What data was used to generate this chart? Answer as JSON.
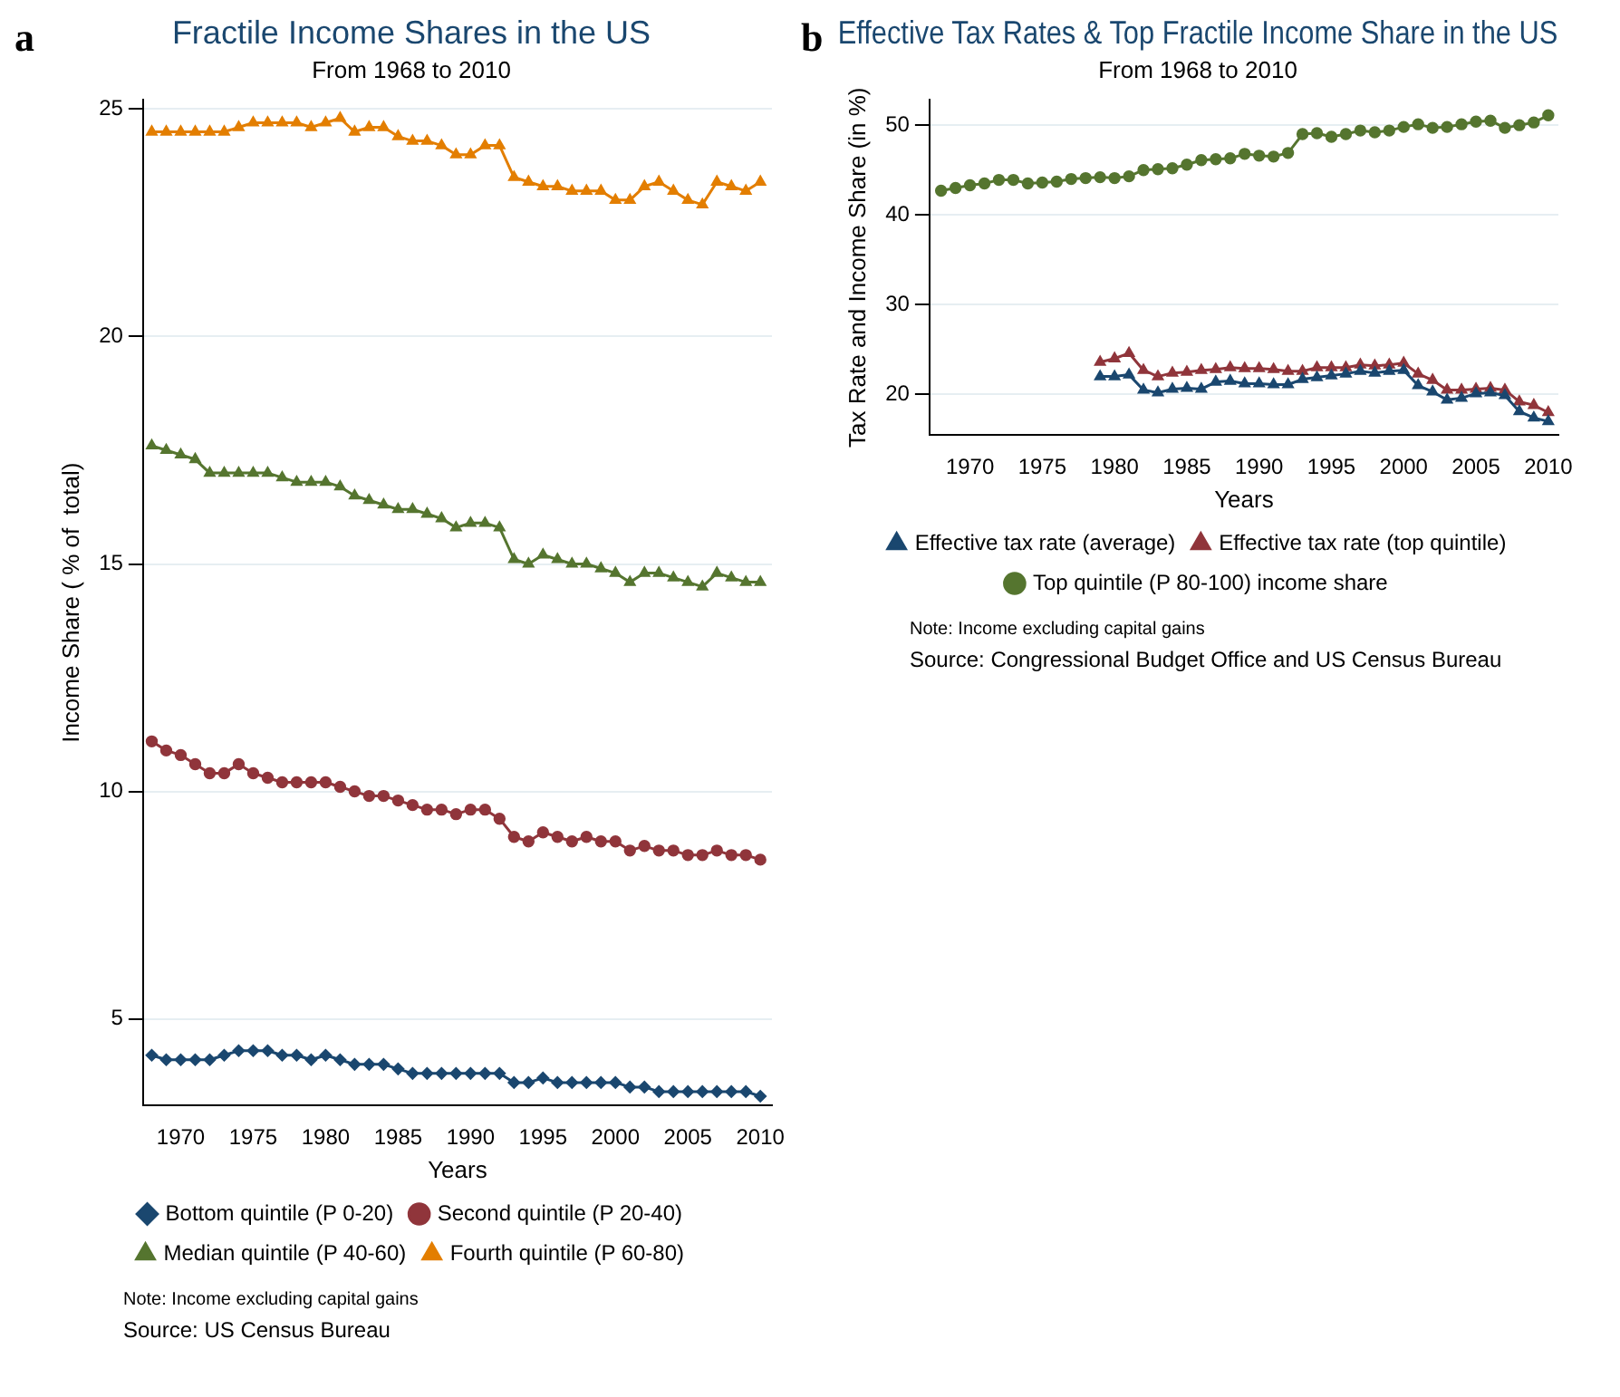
{
  "chart_data": [
    {
      "type": "line",
      "title": "Fractile Income Shares in the US",
      "subtitle": "From 1968 to 2010",
      "xlabel": "Years",
      "ylabel": "Income Share ( % of  total)",
      "x": [
        1968,
        1969,
        1970,
        1971,
        1972,
        1973,
        1974,
        1975,
        1976,
        1977,
        1978,
        1979,
        1980,
        1981,
        1982,
        1983,
        1984,
        1985,
        1986,
        1987,
        1988,
        1989,
        1990,
        1991,
        1992,
        1993,
        1994,
        1995,
        1996,
        1997,
        1998,
        1999,
        2000,
        2001,
        2002,
        2003,
        2004,
        2005,
        2006,
        2007,
        2008,
        2009,
        2010
      ],
      "series": [
        {
          "name": "Bottom quintile (P 0-20)",
          "color": "#1a476f",
          "marker": "diamond",
          "values": [
            4.2,
            4.1,
            4.1,
            4.1,
            4.1,
            4.2,
            4.3,
            4.3,
            4.3,
            4.2,
            4.2,
            4.1,
            4.2,
            4.1,
            4.0,
            4.0,
            4.0,
            3.9,
            3.8,
            3.8,
            3.8,
            3.8,
            3.8,
            3.8,
            3.8,
            3.6,
            3.6,
            3.7,
            3.6,
            3.6,
            3.6,
            3.6,
            3.6,
            3.5,
            3.5,
            3.4,
            3.4,
            3.4,
            3.4,
            3.4,
            3.4,
            3.4,
            3.3
          ]
        },
        {
          "name": "Second quintile (P 20-40)",
          "color": "#90353b",
          "marker": "circle",
          "values": [
            11.1,
            10.9,
            10.8,
            10.6,
            10.4,
            10.4,
            10.6,
            10.4,
            10.3,
            10.2,
            10.2,
            10.2,
            10.2,
            10.1,
            10.0,
            9.9,
            9.9,
            9.8,
            9.7,
            9.6,
            9.6,
            9.5,
            9.6,
            9.6,
            9.4,
            9.0,
            8.9,
            9.1,
            9.0,
            8.9,
            9.0,
            8.9,
            8.9,
            8.7,
            8.8,
            8.7,
            8.7,
            8.6,
            8.6,
            8.7,
            8.6,
            8.6,
            8.5
          ]
        },
        {
          "name": "Median quintile (P 40-60)",
          "color": "#55752f",
          "marker": "triangle",
          "values": [
            17.6,
            17.5,
            17.4,
            17.3,
            17.0,
            17.0,
            17.0,
            17.0,
            17.0,
            16.9,
            16.8,
            16.8,
            16.8,
            16.7,
            16.5,
            16.4,
            16.3,
            16.2,
            16.2,
            16.1,
            16.0,
            15.8,
            15.9,
            15.9,
            15.8,
            15.1,
            15.0,
            15.2,
            15.1,
            15.0,
            15.0,
            14.9,
            14.8,
            14.6,
            14.8,
            14.8,
            14.7,
            14.6,
            14.5,
            14.8,
            14.7,
            14.6,
            14.6
          ]
        },
        {
          "name": "Fourth quintile (P 60-80)",
          "color": "#e37e00",
          "marker": "triangle",
          "values": [
            24.5,
            24.5,
            24.5,
            24.5,
            24.5,
            24.5,
            24.6,
            24.7,
            24.7,
            24.7,
            24.7,
            24.6,
            24.7,
            24.8,
            24.5,
            24.6,
            24.6,
            24.4,
            24.3,
            24.3,
            24.2,
            24.0,
            24.0,
            24.2,
            24.2,
            23.5,
            23.4,
            23.3,
            23.3,
            23.2,
            23.2,
            23.2,
            23.0,
            23.0,
            23.3,
            23.4,
            23.2,
            23.0,
            22.9,
            23.4,
            23.3,
            23.2,
            23.4
          ]
        }
      ],
      "xlim": [
        1967.4,
        2010.8
      ],
      "xticks": [
        1970,
        1975,
        1980,
        1985,
        1990,
        1995,
        2000,
        2005,
        2010
      ],
      "ylim": [
        3.1,
        25.2
      ],
      "yticks": [
        5,
        10,
        15,
        20,
        25
      ],
      "grid": "y",
      "legend": "bottom",
      "annotations": [
        "a",
        "Note: Income excluding capital gains",
        "Source: US Census Bureau"
      ]
    },
    {
      "type": "line",
      "title": "Effective Tax Rates & Top Fractile Income Share in the US",
      "subtitle": "From 1968 to 2010",
      "xlabel": "Years",
      "ylabel": "Tax Rate and Income Share (in %)",
      "x": [
        1968,
        1969,
        1970,
        1971,
        1972,
        1973,
        1974,
        1975,
        1976,
        1977,
        1978,
        1979,
        1980,
        1981,
        1982,
        1983,
        1984,
        1985,
        1986,
        1987,
        1988,
        1989,
        1990,
        1991,
        1992,
        1993,
        1994,
        1995,
        1996,
        1997,
        1998,
        1999,
        2000,
        2001,
        2002,
        2003,
        2004,
        2005,
        2006,
        2007,
        2008,
        2009,
        2010
      ],
      "series": [
        {
          "name": "Effective tax rate (average)",
          "color": "#1a476f",
          "marker": "triangle",
          "values": [
            null,
            null,
            null,
            null,
            null,
            null,
            null,
            null,
            null,
            null,
            null,
            22.0,
            22.0,
            22.2,
            20.5,
            20.2,
            20.6,
            20.7,
            20.6,
            21.4,
            21.5,
            21.2,
            21.2,
            21.1,
            21.1,
            21.7,
            21.9,
            22.1,
            22.3,
            22.6,
            22.4,
            22.6,
            22.7,
            21.0,
            20.3,
            19.4,
            19.6,
            20.1,
            20.2,
            19.9,
            18.1,
            17.4,
            17.0
          ]
        },
        {
          "name": "Effective tax rate (top quintile)",
          "color": "#90353b",
          "marker": "triangle",
          "values": [
            null,
            null,
            null,
            null,
            null,
            null,
            null,
            null,
            null,
            null,
            null,
            23.6,
            24.0,
            24.6,
            22.7,
            22.0,
            22.4,
            22.5,
            22.7,
            22.8,
            23.0,
            22.9,
            22.9,
            22.8,
            22.6,
            22.6,
            23.0,
            23.0,
            23.0,
            23.3,
            23.2,
            23.3,
            23.5,
            22.3,
            21.6,
            20.5,
            20.5,
            20.6,
            20.7,
            20.5,
            19.2,
            18.8,
            18.0
          ]
        },
        {
          "name": "Top quintile (P 80-100) income share",
          "color": "#55752f",
          "marker": "circle",
          "values": [
            42.7,
            43.0,
            43.3,
            43.5,
            43.9,
            43.9,
            43.5,
            43.6,
            43.7,
            44.0,
            44.1,
            44.2,
            44.1,
            44.3,
            45.0,
            45.1,
            45.2,
            45.6,
            46.1,
            46.2,
            46.3,
            46.8,
            46.6,
            46.5,
            46.9,
            49.0,
            49.1,
            48.7,
            49.0,
            49.4,
            49.2,
            49.4,
            49.8,
            50.1,
            49.7,
            49.8,
            50.1,
            50.4,
            50.5,
            49.7,
            50.0,
            50.3,
            51.1
          ]
        }
      ],
      "xlim": [
        1967.2,
        2010.7
      ],
      "xticks": [
        1970,
        1975,
        1980,
        1985,
        1990,
        1995,
        2000,
        2005,
        2010
      ],
      "ylim": [
        15.5,
        52.8
      ],
      "yticks": [
        20,
        30,
        40,
        50
      ],
      "grid": "y",
      "legend": "bottom",
      "annotations": [
        "b",
        "Note: Income excluding capital gains",
        "Source: Congressional Budget Office and US Census Bureau"
      ]
    }
  ]
}
